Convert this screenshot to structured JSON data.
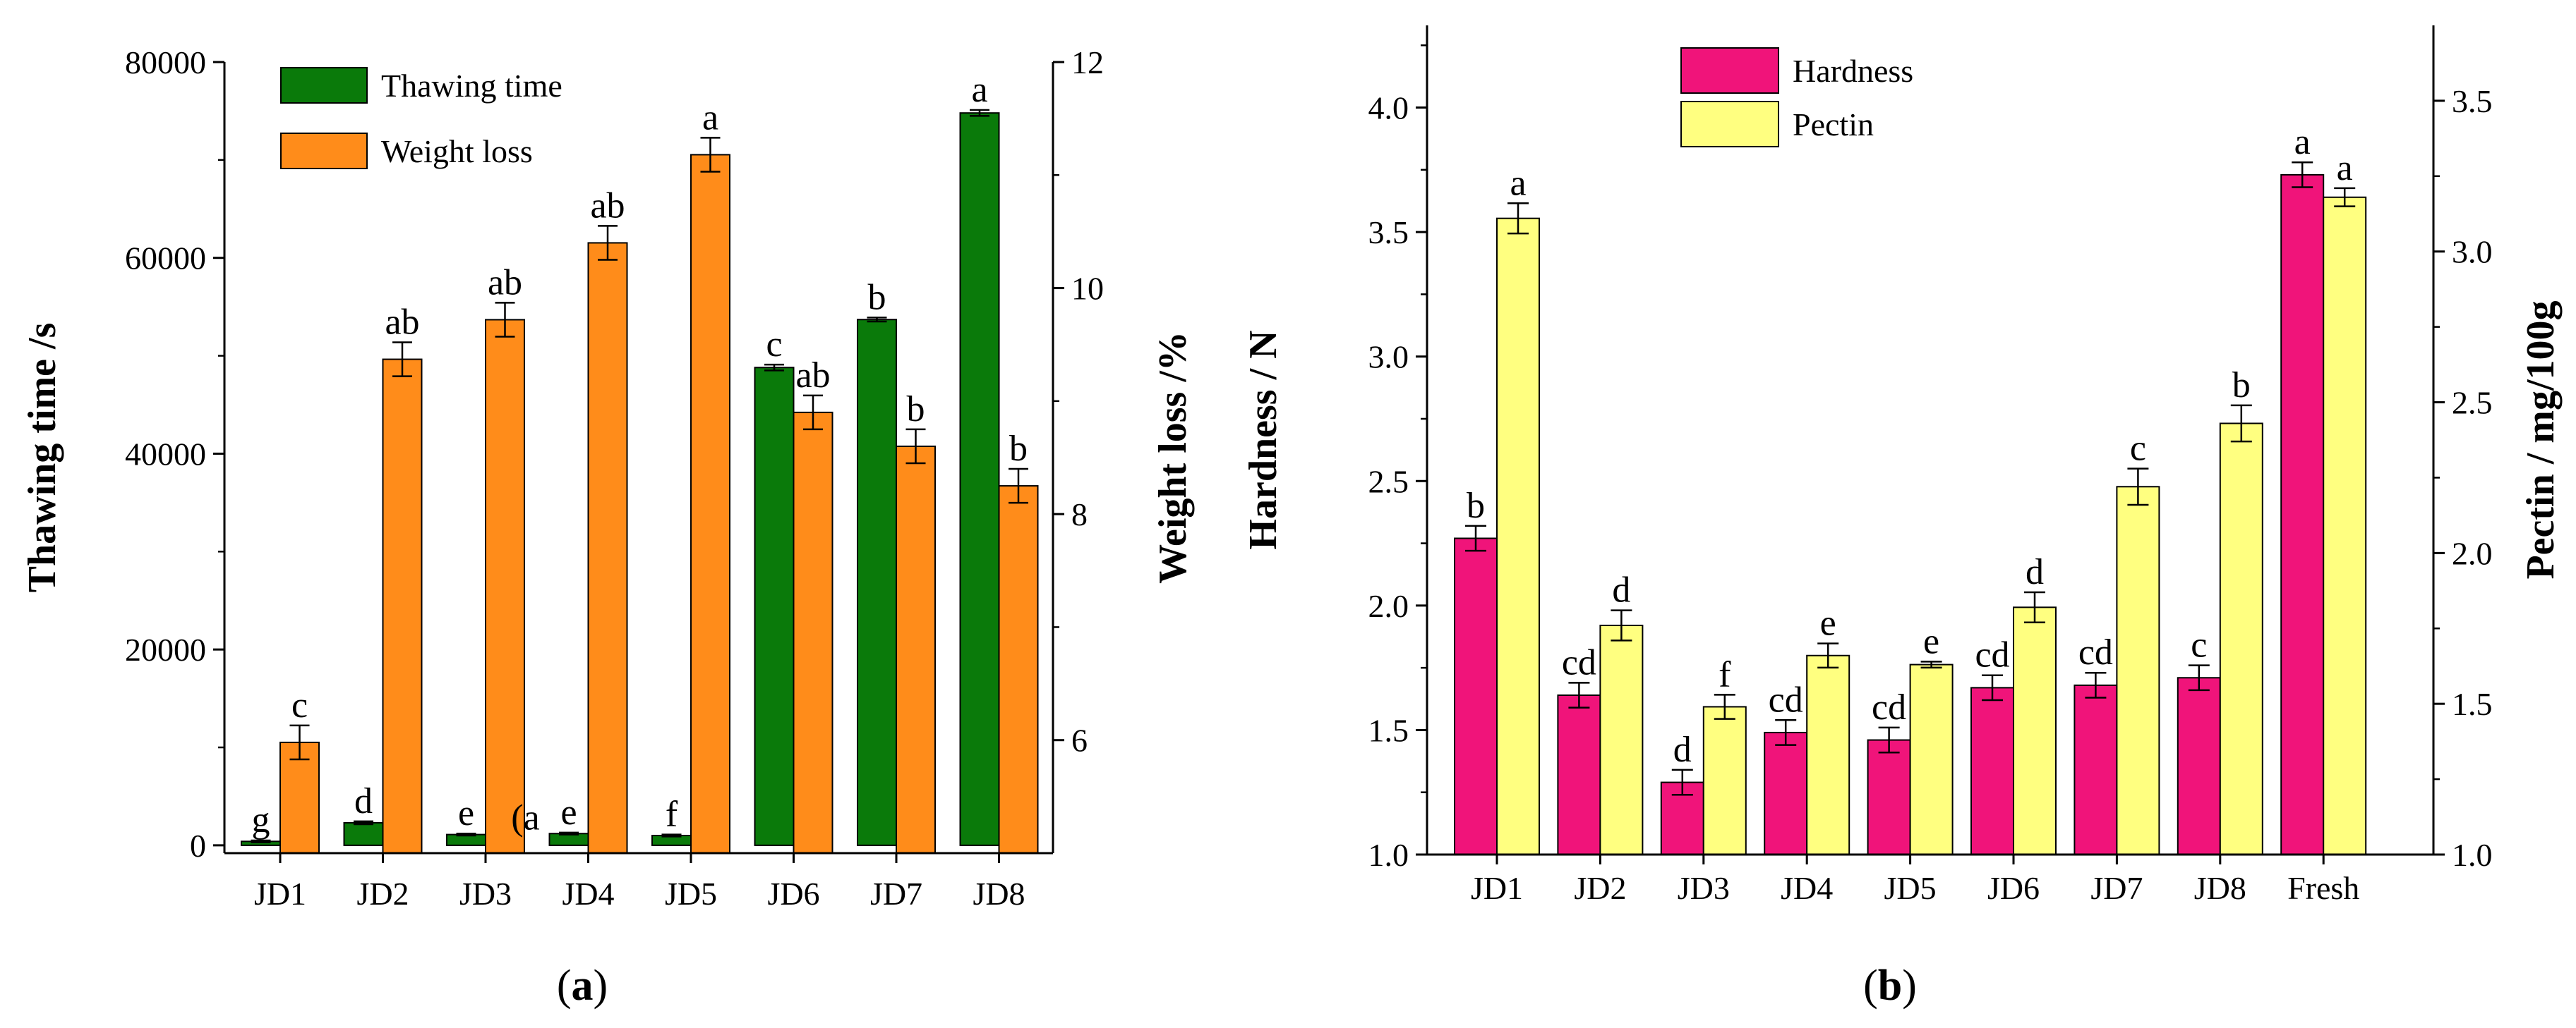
{
  "panels": [
    {
      "caption_open": "(",
      "caption_letter": "a",
      "caption_close": ")"
    },
    {
      "caption_open": "(",
      "caption_letter": "b",
      "caption_close": ")"
    }
  ],
  "chart_data": [
    {
      "type": "bar",
      "categories": [
        "JD1",
        "JD2",
        "JD3",
        "JD4",
        "JD5",
        "JD6",
        "JD7",
        "JD8"
      ],
      "y_left": {
        "label": "Thawing time /s",
        "range": [
          -800,
          80000
        ],
        "ticks": [
          0,
          20000,
          40000,
          60000,
          80000
        ]
      },
      "y_right": {
        "label": "Weight loss /%",
        "range": [
          5.0,
          12.0
        ],
        "ticks": [
          6,
          8,
          10,
          12
        ]
      },
      "series": [
        {
          "name": "Thawing time",
          "axis": "left",
          "color": "#0a7a0a",
          "values": [
            400,
            2300,
            1100,
            1200,
            1000,
            48800,
            53700,
            74800
          ],
          "errors": [
            100,
            150,
            100,
            100,
            100,
            300,
            200,
            300
          ],
          "letters": [
            "g",
            "d",
            "e",
            "e",
            "f",
            "c",
            "b",
            "a"
          ]
        },
        {
          "name": "Weight loss",
          "axis": "right",
          "color": "#ff8c1a",
          "values": [
            5.98,
            9.37,
            9.72,
            10.4,
            11.18,
            8.9,
            8.6,
            8.25
          ],
          "errors": [
            0.15,
            0.15,
            0.15,
            0.15,
            0.15,
            0.15,
            0.15,
            0.15
          ],
          "letters": [
            "c",
            "ab",
            "ab",
            "ab",
            "a",
            "ab",
            "b",
            "b"
          ]
        }
      ],
      "annotations": [
        {
          "text": "(a",
          "category": "JD4",
          "y": 900
        }
      ],
      "legend": "top-left",
      "grid": false
    },
    {
      "type": "bar",
      "categories": [
        "JD1",
        "JD2",
        "JD3",
        "JD4",
        "JD5",
        "JD6",
        "JD7",
        "JD8",
        "Fresh"
      ],
      "y_left": {
        "label": "Hardness / N",
        "range": [
          1.0,
          4.33
        ],
        "ticks": [
          1.0,
          1.5,
          2.0,
          2.5,
          3.0,
          3.5,
          4.0
        ]
      },
      "y_right": {
        "label": "Pectin / mg/100g",
        "range": [
          1.0,
          3.75
        ],
        "ticks": [
          1.0,
          1.5,
          2.0,
          2.5,
          3.0,
          3.5
        ]
      },
      "series": [
        {
          "name": "Hardness",
          "axis": "left",
          "color": "#f0147a",
          "values": [
            2.27,
            1.64,
            1.29,
            1.49,
            1.46,
            1.67,
            1.68,
            1.71,
            3.73
          ],
          "errors": [
            0.05,
            0.05,
            0.05,
            0.05,
            0.05,
            0.05,
            0.05,
            0.05,
            0.05
          ],
          "letters": [
            "b",
            "cd",
            "d",
            "cd",
            "cd",
            "cd",
            "cd",
            "c",
            "a"
          ]
        },
        {
          "name": "Pectin",
          "axis": "right",
          "color": "#ffff80",
          "values": [
            3.11,
            1.76,
            1.49,
            1.66,
            1.63,
            1.82,
            2.22,
            2.43,
            3.18
          ],
          "errors": [
            0.05,
            0.05,
            0.04,
            0.04,
            0.01,
            0.05,
            0.06,
            0.06,
            0.03
          ],
          "letters": [
            "a",
            "d",
            "f",
            "e",
            "e",
            "d",
            "c",
            "b",
            "a"
          ]
        }
      ],
      "legend": "top-left",
      "grid": false
    }
  ]
}
